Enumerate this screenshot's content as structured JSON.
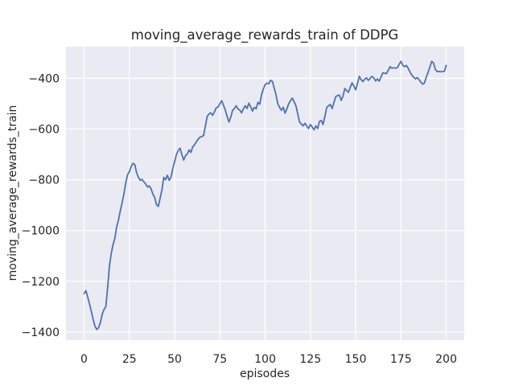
{
  "chart_data": {
    "type": "line",
    "title": "moving_average_rewards_train of DDPG",
    "xlabel": "episodes",
    "ylabel": "moving_average_rewards_train",
    "x_ticks": [
      0,
      25,
      50,
      75,
      100,
      125,
      150,
      175,
      200
    ],
    "x_tick_labels": [
      "0",
      "25",
      "50",
      "75",
      "100",
      "125",
      "150",
      "175",
      "200"
    ],
    "y_ticks": [
      -400,
      -600,
      -800,
      -1000,
      -1200,
      -1400
    ],
    "y_tick_labels": [
      "−400",
      "−600",
      "−800",
      "−1000",
      "−1200",
      "−1400"
    ],
    "xlim": [
      -10,
      210
    ],
    "ylim": [
      -1432,
      -275
    ],
    "grid": true,
    "legend": false,
    "style": "seaborn-darkgrid",
    "plot_bg_color": "#EAEAF2",
    "grid_color": "#FFFFFF",
    "line_color": "#4C72B0",
    "text_color": "#262626",
    "series": [
      {
        "name": "moving_average_rewards_train",
        "x0": 0,
        "dx": 1,
        "values": [
          -1248,
          -1237,
          -1262,
          -1290,
          -1318,
          -1350,
          -1377,
          -1390,
          -1383,
          -1362,
          -1330,
          -1311,
          -1300,
          -1225,
          -1140,
          -1090,
          -1055,
          -1030,
          -985,
          -958,
          -922,
          -890,
          -855,
          -812,
          -780,
          -768,
          -748,
          -735,
          -740,
          -772,
          -790,
          -802,
          -798,
          -808,
          -816,
          -828,
          -824,
          -836,
          -856,
          -870,
          -898,
          -905,
          -872,
          -840,
          -790,
          -800,
          -782,
          -802,
          -790,
          -755,
          -728,
          -700,
          -685,
          -675,
          -700,
          -722,
          -705,
          -698,
          -682,
          -692,
          -670,
          -662,
          -650,
          -640,
          -632,
          -630,
          -625,
          -588,
          -550,
          -540,
          -536,
          -546,
          -532,
          -516,
          -513,
          -500,
          -488,
          -506,
          -525,
          -550,
          -572,
          -553,
          -526,
          -519,
          -508,
          -521,
          -525,
          -536,
          -520,
          -508,
          -519,
          -498,
          -512,
          -529,
          -514,
          -520,
          -495,
          -502,
          -465,
          -442,
          -425,
          -419,
          -421,
          -408,
          -412,
          -438,
          -465,
          -500,
          -515,
          -526,
          -514,
          -537,
          -520,
          -500,
          -488,
          -478,
          -492,
          -508,
          -540,
          -572,
          -580,
          -587,
          -577,
          -588,
          -598,
          -582,
          -592,
          -603,
          -587,
          -598,
          -570,
          -566,
          -582,
          -550,
          -515,
          -508,
          -503,
          -519,
          -495,
          -472,
          -468,
          -466,
          -487,
          -470,
          -440,
          -448,
          -455,
          -435,
          -418,
          -430,
          -445,
          -420,
          -392,
          -405,
          -413,
          -403,
          -398,
          -408,
          -400,
          -392,
          -398,
          -410,
          -402,
          -411,
          -395,
          -378,
          -380,
          -381,
          -368,
          -354,
          -360,
          -358,
          -360,
          -358,
          -345,
          -333,
          -348,
          -354,
          -349,
          -360,
          -375,
          -387,
          -395,
          -402,
          -397,
          -405,
          -415,
          -423,
          -418,
          -395,
          -376,
          -355,
          -333,
          -339,
          -365,
          -373,
          -373,
          -374,
          -373,
          -372,
          -349
        ]
      }
    ]
  }
}
